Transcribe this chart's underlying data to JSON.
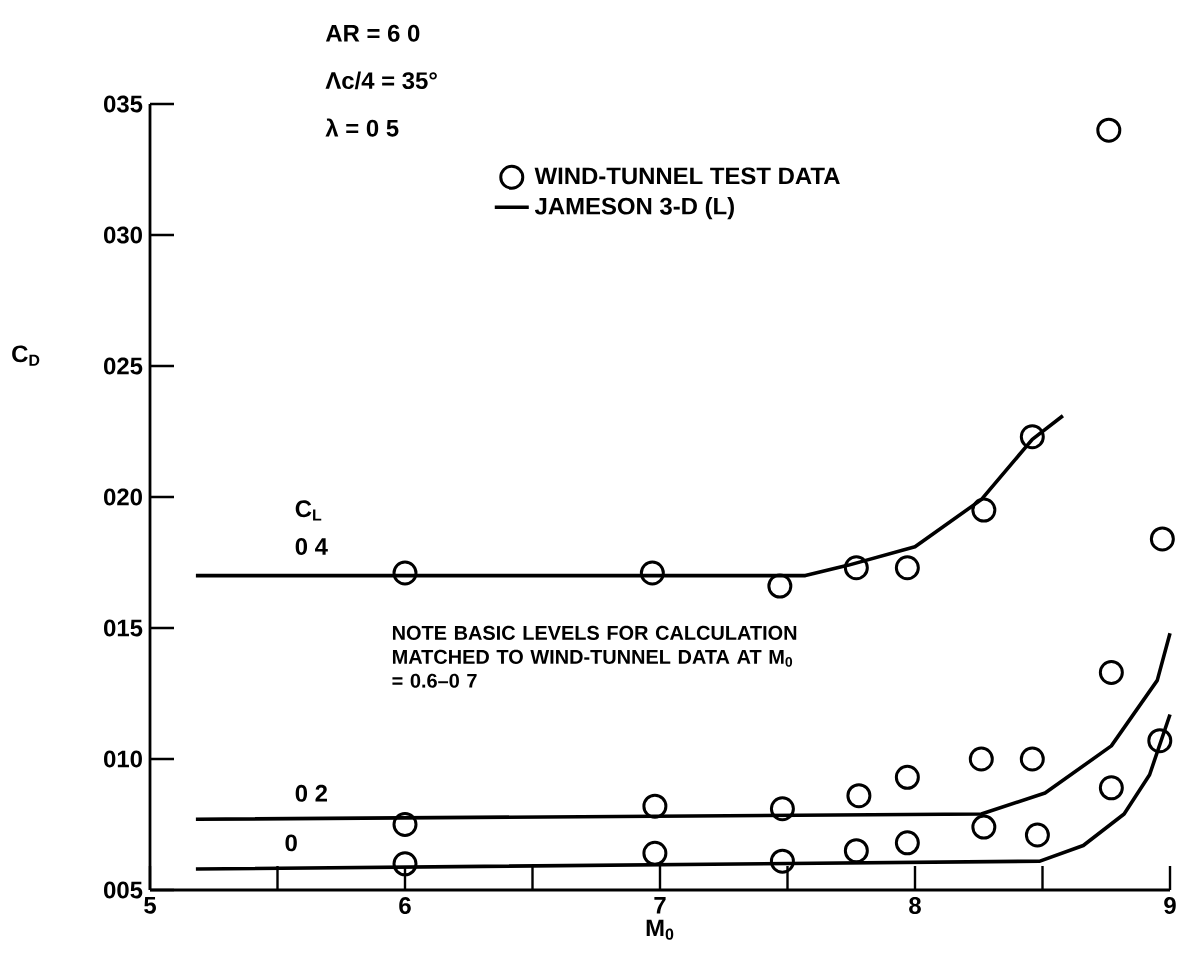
{
  "chart_data": {
    "type": "line",
    "xlabel": "M$_{0}$",
    "ylabel": "C$_{D}$",
    "xlim": [
      5,
      9
    ],
    "ylim": [
      5,
      35
    ],
    "xticks": [
      5,
      {
        "value": 5.5,
        "label": null
      },
      6,
      {
        "value": 6.5,
        "label": null
      },
      7,
      {
        "value": 7.5,
        "label": null
      },
      8,
      {
        "value": 8.5,
        "label": null
      },
      9
    ],
    "yticks": [
      {
        "value": 5,
        "label": "005"
      },
      {
        "value": 10,
        "label": "010"
      },
      {
        "value": 15,
        "label": "015"
      },
      {
        "value": 20,
        "label": "020"
      },
      {
        "value": 25,
        "label": "025"
      },
      {
        "value": 30,
        "label": "030"
      },
      {
        "value": 35,
        "label": "035"
      }
    ],
    "legend": "top",
    "series": [
      {
        "name": "WIND-TUNNEL TEST DATA",
        "type": "scatter",
        "marker": "circle",
        "color": "#000000",
        "x": [
          6,
          6.97,
          7.47,
          7.77,
          7.97,
          8.27,
          8.46,
          8.76,
          8.97,
          6,
          6.98,
          7.48,
          7.78,
          7.97,
          8.26,
          8.46,
          8.77,
          6,
          6.98,
          7.48,
          7.77,
          7.97,
          8.27,
          8.48,
          8.77,
          8.96
        ],
        "values": [
          17.1,
          17.1,
          16.6,
          17.3,
          17.3,
          19.5,
          22.3,
          34,
          18.4,
          7.5,
          8.2,
          8.1,
          8.6,
          9.3,
          10,
          10,
          13.3,
          6,
          6.4,
          6.1,
          6.5,
          6.8,
          7.4,
          7.1,
          8.9,
          10.7
        ]
      },
      {
        "name": "JAMESON 3-D (L)",
        "color": "#000000",
        "x": [
          5.18,
          7.57,
          7.74,
          8,
          8.26,
          8.46,
          8.58
        ],
        "values": [
          17,
          17,
          17.4,
          18.1,
          19.9,
          22.2,
          23.1
        ]
      },
      {
        "color": "#000000",
        "x": [
          5.18,
          8.26,
          8.51,
          8.77,
          8.95,
          9
        ],
        "values": [
          7.7,
          7.9,
          8.7,
          10.5,
          13,
          14.8
        ]
      },
      {
        "color": "#000000",
        "x": [
          5.18,
          8.49,
          8.66,
          8.82,
          8.92,
          9
        ],
        "values": [
          5.8,
          6.1,
          6.7,
          7.9,
          9.4,
          11.7
        ]
      }
    ],
    "annotations": [
      "AR   = 6 0",
      "Λc/4 = 35°",
      "λ     = 0 5",
      "C$_{L}$",
      "0 4",
      "0 2",
      "0",
      "NOTE   BASIC LEVELS FOR CALCULATION MATCHED TO WIND-TUNNEL DATA AT M$_{0}$ = 0.6–0 7"
    ]
  }
}
